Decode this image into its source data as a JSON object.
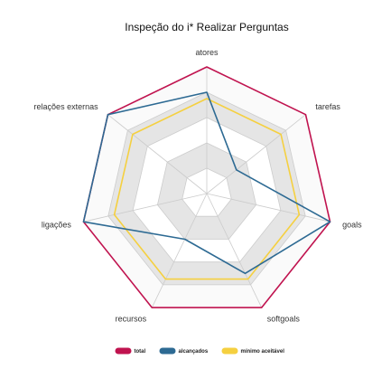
{
  "chart_data": {
    "type": "radar",
    "title": "Inspeção do i* Realizar Perguntas",
    "axes": [
      "atores",
      "tarefas",
      "goals",
      "softgoals",
      "recursos",
      "ligações",
      "relações externas"
    ],
    "rmax": 10,
    "ring_levels": [
      2,
      4,
      6,
      8,
      10
    ],
    "band_fill": "#e5e5e5",
    "grid_color": "#cccccc",
    "legend_position": "bottom",
    "series": [
      {
        "name": "total",
        "color": "#c0134f",
        "values": [
          10,
          10,
          10,
          10,
          10,
          10,
          10
        ]
      },
      {
        "name": "alcançados",
        "color": "#2d6a93",
        "values": [
          8,
          3,
          10,
          7,
          4,
          10,
          10
        ]
      },
      {
        "name": "mínimo aceitável",
        "color": "#f5d040",
        "values": [
          7.5,
          7.5,
          7.5,
          7.5,
          7.5,
          7.5,
          7.5
        ]
      }
    ]
  }
}
